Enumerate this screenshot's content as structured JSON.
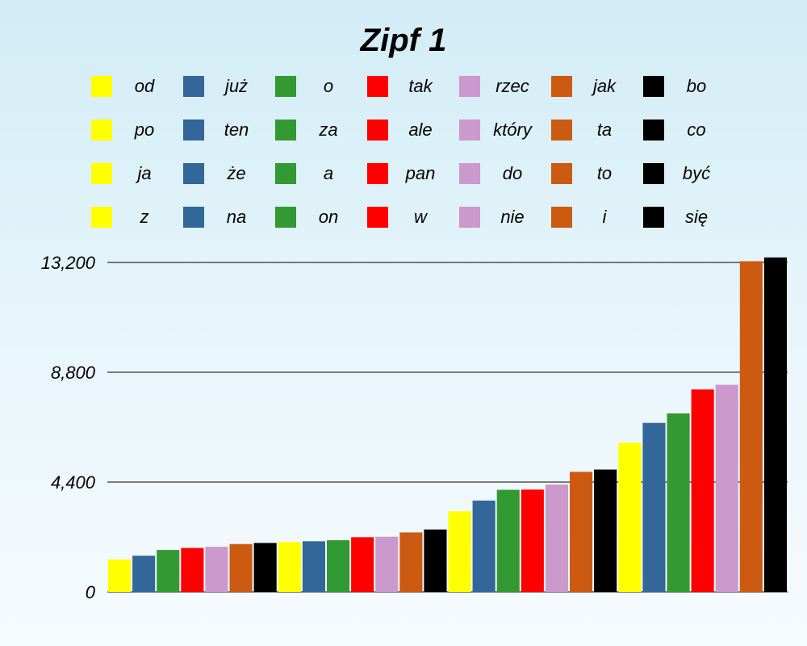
{
  "chart_data": {
    "type": "bar",
    "title": "Zipf 1",
    "xlabel": "",
    "ylabel": "",
    "ylim": [
      0,
      13200
    ],
    "yticks": [
      "0",
      "4,400",
      "8,800",
      "13,200"
    ],
    "ytick_values": [
      0,
      4400,
      8800,
      13200
    ],
    "grid": true,
    "legend_position": "top",
    "series": [
      {
        "name": "od",
        "color": "#ffff00",
        "value": 1300
      },
      {
        "name": "już",
        "color": "#336699",
        "value": 1450
      },
      {
        "name": "o",
        "color": "#339933",
        "value": 1680
      },
      {
        "name": "tak",
        "color": "#ff0000",
        "value": 1760
      },
      {
        "name": "rzec",
        "color": "#cc99cc",
        "value": 1810
      },
      {
        "name": "jak",
        "color": "#cc5a11",
        "value": 1920
      },
      {
        "name": "bo",
        "color": "#000000",
        "value": 1960
      },
      {
        "name": "po",
        "color": "#ffff00",
        "value": 2000
      },
      {
        "name": "ten",
        "color": "#336699",
        "value": 2030
      },
      {
        "name": "za",
        "color": "#339933",
        "value": 2070
      },
      {
        "name": "ale",
        "color": "#ff0000",
        "value": 2190
      },
      {
        "name": "który",
        "color": "#cc99cc",
        "value": 2210
      },
      {
        "name": "ta",
        "color": "#cc5a11",
        "value": 2380
      },
      {
        "name": "co",
        "color": "#000000",
        "value": 2500
      },
      {
        "name": "ja",
        "color": "#ffff00",
        "value": 3230
      },
      {
        "name": "że",
        "color": "#336699",
        "value": 3660
      },
      {
        "name": "a",
        "color": "#339933",
        "value": 4090
      },
      {
        "name": "pan",
        "color": "#ff0000",
        "value": 4100
      },
      {
        "name": "do",
        "color": "#cc99cc",
        "value": 4300
      },
      {
        "name": "to",
        "color": "#cc5a11",
        "value": 4810
      },
      {
        "name": "być",
        "color": "#000000",
        "value": 4900
      },
      {
        "name": "z",
        "color": "#ffff00",
        "value": 5980
      },
      {
        "name": "na",
        "color": "#336699",
        "value": 6770
      },
      {
        "name": "on",
        "color": "#339933",
        "value": 7150
      },
      {
        "name": "w",
        "color": "#ff0000",
        "value": 8110
      },
      {
        "name": "nie",
        "color": "#cc99cc",
        "value": 8300
      },
      {
        "name": "i",
        "color": "#cc5a11",
        "value": 13250
      },
      {
        "name": "się",
        "color": "#000000",
        "value": 13400
      }
    ]
  }
}
